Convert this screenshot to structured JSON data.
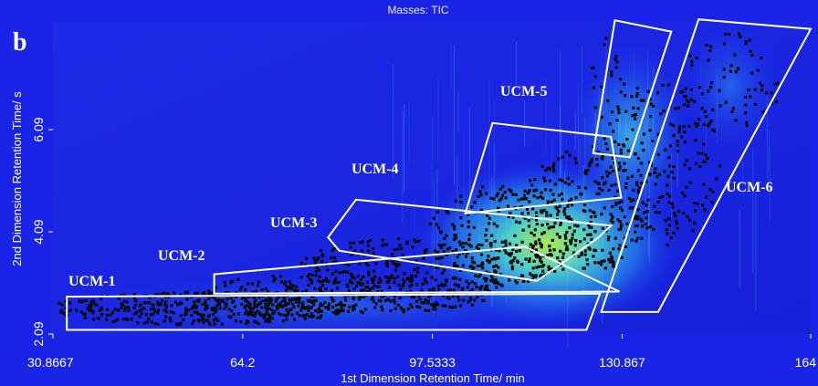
{
  "panel_label": "b",
  "chart_data": {
    "type": "heatmap",
    "title": "Masses: TIC",
    "xlabel": "1st Dimension Retention Time/ min",
    "ylabel": "2nd Dimension Retention Time/ s",
    "xlim": [
      30.8667,
      164
    ],
    "ylim": [
      2.09,
      8.2
    ],
    "x_ticks": [
      {
        "value": 30.8667,
        "label": "30.8667"
      },
      {
        "value": 64.2,
        "label": "64.2"
      },
      {
        "value": 97.5333,
        "label": "97.5333"
      },
      {
        "value": 130.867,
        "label": "130.867"
      },
      {
        "value": 164,
        "label": "164"
      }
    ],
    "y_ticks": [
      {
        "value": 2.09,
        "label": "2.09"
      },
      {
        "value": 4.09,
        "label": "4.09"
      },
      {
        "value": 6.09,
        "label": "6.09"
      }
    ],
    "colors": {
      "background": "#1a24e6",
      "gradient_mid": "#2f9ef2",
      "gradient_hot": "#63f0d0",
      "gradient_peak": "#a8f040",
      "markers": "#0a0a0a",
      "regions": "#ffffff"
    },
    "regions": [
      {
        "name": "UCM-1",
        "polygon": [
          [
            33.3,
            2.17
          ],
          [
            33.3,
            2.82
          ],
          [
            127,
            2.88
          ],
          [
            124.6,
            2.17
          ]
        ]
      },
      {
        "name": "UCM-2",
        "polygon": [
          [
            59.2,
            2.88
          ],
          [
            59.2,
            3.26
          ],
          [
            113.8,
            3.8
          ],
          [
            130.4,
            2.92
          ]
        ]
      },
      {
        "name": "UCM-3",
        "polygon": [
          [
            81.2,
            3.72
          ],
          [
            79.2,
            3.98
          ],
          [
            84.1,
            4.72
          ],
          [
            128.9,
            4.21
          ],
          [
            126.6,
            3.97
          ],
          [
            115.9,
            3.13
          ]
        ]
      },
      {
        "name": "UCM-4",
        "polygon": [
          [
            103.3,
            4.45
          ],
          [
            108.1,
            6.22
          ],
          [
            128.9,
            5.95
          ],
          [
            130.7,
            4.76
          ]
        ]
      },
      {
        "name": "UCM-5",
        "polygon": [
          [
            125.8,
            5.63
          ],
          [
            132.2,
            5.55
          ],
          [
            139.5,
            8.01
          ],
          [
            129.6,
            8.23
          ]
        ]
      },
      {
        "name": "UCM-6",
        "polygon": [
          [
            127.2,
            2.52
          ],
          [
            137.2,
            2.52
          ],
          [
            164,
            8.06
          ],
          [
            144.3,
            8.25
          ]
        ]
      }
    ]
  }
}
